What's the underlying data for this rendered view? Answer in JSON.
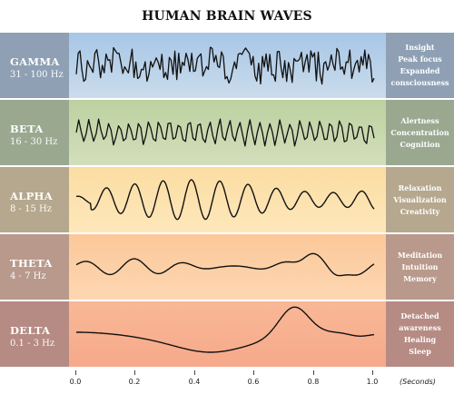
{
  "title": "HUMAN BRAIN WAVES",
  "waves": [
    {
      "name": "GAMMA",
      "freq": "31 - 100 Hz",
      "effects": [
        "Insight",
        "Peak focus",
        "Expanded",
        "consciousness"
      ]
    },
    {
      "name": "BETA",
      "freq": "16 - 30 Hz",
      "effects": [
        "Alertness",
        "Concentration",
        "Cognition"
      ]
    },
    {
      "name": "ALPHA",
      "freq": "8 - 15 Hz",
      "effects": [
        "Relaxation",
        "Visualization",
        "Creativity"
      ]
    },
    {
      "name": "THETA",
      "freq": "4 - 7 Hz",
      "effects": [
        "Meditation",
        "Intuition",
        "Memory"
      ]
    },
    {
      "name": "DELTA",
      "freq": "0.1 - 3 Hz",
      "effects": [
        "Detached",
        "awareness",
        "Healing",
        "Sleep"
      ]
    }
  ],
  "axis": {
    "ticks": [
      "0.0",
      "0.2",
      "0.4",
      "0.6",
      "0.8",
      "1.0"
    ],
    "unit": "(Seconds)"
  }
}
